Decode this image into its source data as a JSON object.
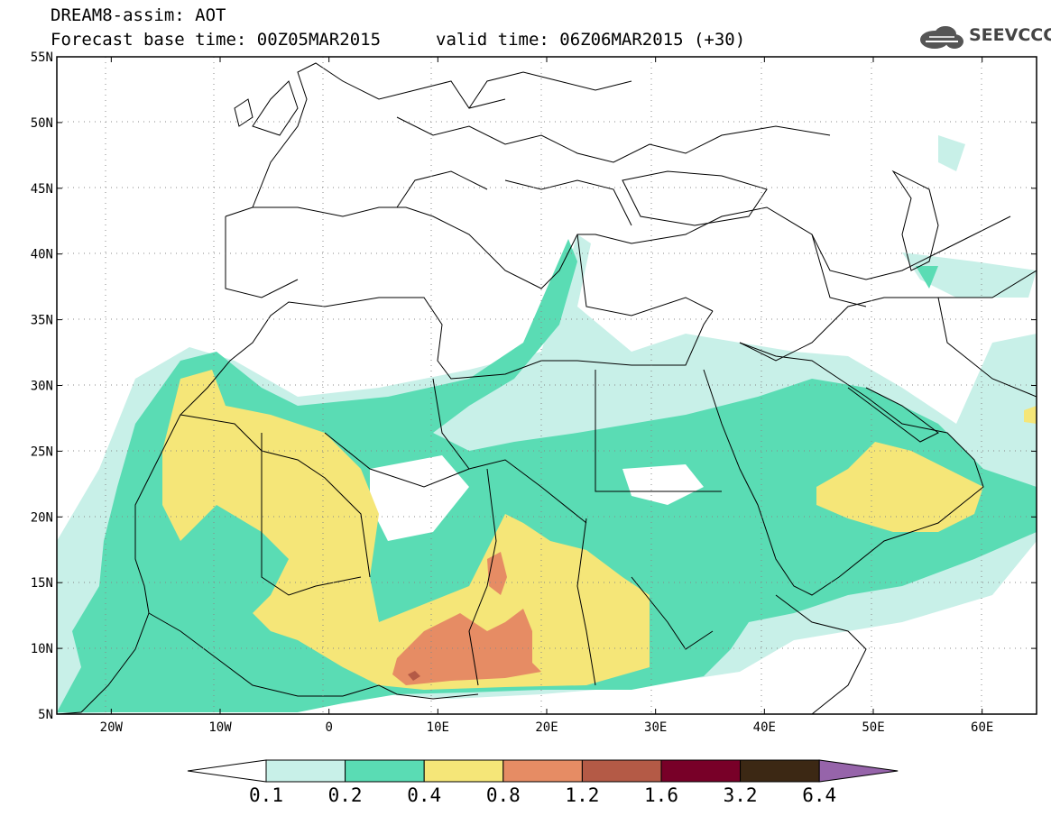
{
  "header": {
    "product": "DREAM8-assim: AOT",
    "base_time": "Forecast base time: 00Z05MAR2015",
    "valid_time": "valid time: 06Z06MAR2015 (+30)",
    "logo_text": "SEEVCCC"
  },
  "map": {
    "projection": "lat-lon",
    "lon_range": [
      -25,
      65
    ],
    "lat_range": [
      5,
      55
    ],
    "lat_ticks": [
      "5N",
      "10N",
      "15N",
      "20N",
      "25N",
      "30N",
      "35N",
      "40N",
      "45N",
      "50N",
      "55N"
    ],
    "lon_ticks": [
      "20W",
      "10W",
      "0",
      "10E",
      "20E",
      "30E",
      "40E",
      "50E",
      "60E"
    ]
  },
  "colorbar": {
    "levels": [
      "0.1",
      "0.2",
      "0.4",
      "0.8",
      "1.2",
      "1.6",
      "3.2",
      "6.4"
    ],
    "colors": [
      "#ffffff",
      "#c8f0e8",
      "#5adcb4",
      "#f5e678",
      "#e68c64",
      "#b45a46",
      "#780028",
      "#3c2814",
      "#9664aa"
    ]
  }
}
